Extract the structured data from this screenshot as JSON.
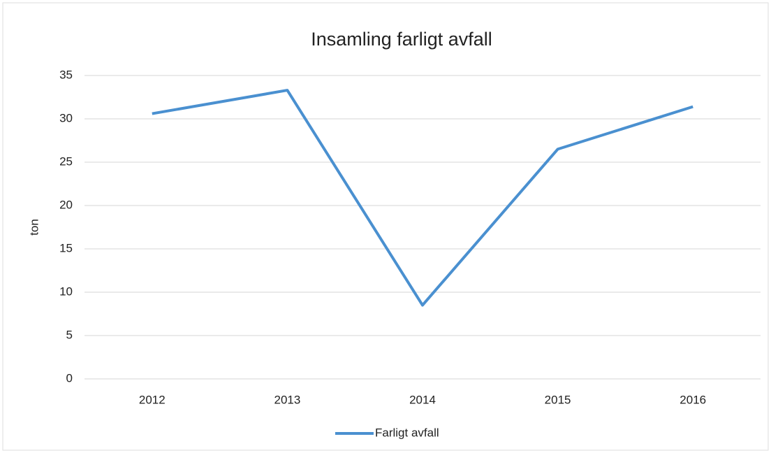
{
  "chart_data": {
    "type": "line",
    "title": "Insamling farligt avfall",
    "y_label": "ton",
    "categories": [
      "2012",
      "2013",
      "2014",
      "2015",
      "2016"
    ],
    "series": [
      {
        "name": "Farligt avfall",
        "color": "#4a90d0",
        "values": [
          30.6,
          33.3,
          8.5,
          26.5,
          31.4
        ]
      }
    ],
    "ylim": [
      0,
      35
    ],
    "yticks": [
      0,
      5,
      10,
      15,
      20,
      25,
      30,
      35
    ],
    "grid": true,
    "legend": "bottom"
  }
}
